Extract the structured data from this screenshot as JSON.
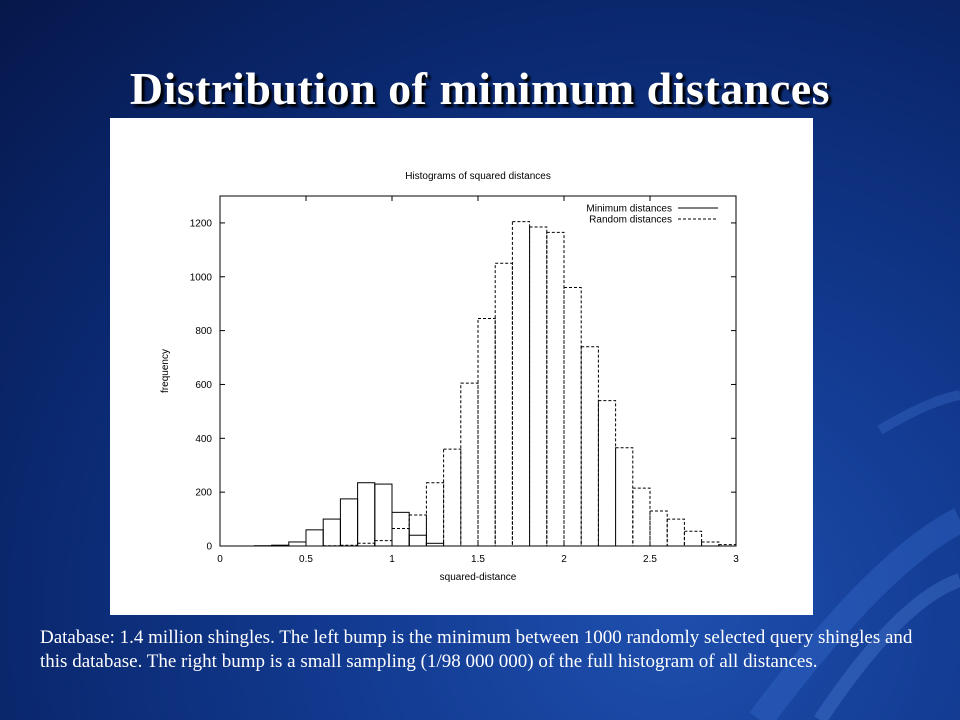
{
  "slide": {
    "title": "Distribution of minimum distances",
    "caption": "Database: 1.4 million shingles. The left bump is the minimum between 1000 randomly selected query shingles and this database. The right bump is a small sampling (1/98 000 000) of the full histogram of all distances."
  },
  "colors": {
    "background": "#0b2a73",
    "title": "#ffffff",
    "caption": "#ffffff",
    "figure_background": "#ffffff",
    "bars": "#000000"
  },
  "chart_data": {
    "type": "bar",
    "title": "Histograms of squared distances",
    "xlabel": "squared-distance",
    "ylabel": "frequency",
    "xlim": [
      0,
      3
    ],
    "ylim": [
      0,
      1300
    ],
    "xticks": [
      "0",
      "0.5",
      "1",
      "1.5",
      "2",
      "2.5",
      "3"
    ],
    "yticks": [
      "0",
      "200",
      "400",
      "600",
      "800",
      "1000",
      "1200"
    ],
    "legend_position": "top-right",
    "bin_width": 0.1,
    "series": [
      {
        "name": "Minimum distances",
        "line_style": "solid",
        "bin_starts": [
          0.2,
          0.3,
          0.4,
          0.5,
          0.6,
          0.7,
          0.8,
          0.9,
          1.0,
          1.1,
          1.2
        ],
        "values": [
          1,
          3,
          15,
          60,
          100,
          175,
          235,
          230,
          125,
          40,
          10
        ]
      },
      {
        "name": "Random distances",
        "line_style": "dashed",
        "bin_starts": [
          0.6,
          0.7,
          0.8,
          0.9,
          1.0,
          1.1,
          1.2,
          1.3,
          1.4,
          1.5,
          1.6,
          1.7,
          1.8,
          1.9,
          2.0,
          2.1,
          2.2,
          2.3,
          2.4,
          2.5,
          2.6,
          2.7,
          2.8,
          2.9
        ],
        "values": [
          1,
          3,
          10,
          20,
          65,
          115,
          235,
          360,
          605,
          845,
          1050,
          1205,
          1185,
          1165,
          960,
          740,
          540,
          365,
          215,
          130,
          100,
          55,
          15,
          5
        ]
      }
    ]
  }
}
